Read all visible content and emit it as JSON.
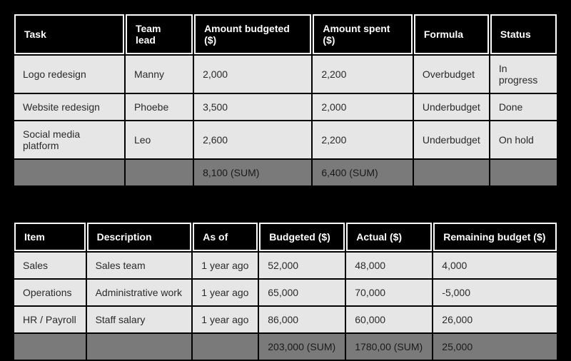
{
  "table1": {
    "type": "table",
    "header_bg": "#000000",
    "header_fg": "#ffffff",
    "header_border": "#ffffff",
    "row_bg": "#e6e6e6",
    "sum_bg": "#7a7a7a",
    "fontsize": 14,
    "columns": [
      "Task",
      "Team lead",
      "Amount budgeted ($)",
      "Amount spent ($)",
      "Formula",
      "Status"
    ],
    "rows": [
      [
        "Logo redesign",
        "Manny",
        "2,000",
        "2,200",
        "Overbudget",
        "In progress"
      ],
      [
        "Website redesign",
        "Phoebe",
        "3,500",
        "2,000",
        "Underbudget",
        "Done"
      ],
      [
        "Social media platform",
        "Leo",
        "2,600",
        "2,200",
        "Underbudget",
        "On hold"
      ]
    ],
    "sumrow": [
      "",
      "",
      "8,100 (SUM)",
      "6,400 (SUM)",
      "",
      ""
    ]
  },
  "table2": {
    "type": "table",
    "header_bg": "#000000",
    "header_fg": "#ffffff",
    "header_border": "#ffffff",
    "row_bg": "#e6e6e6",
    "sum_bg": "#7a7a7a",
    "fontsize": 14,
    "columns": [
      "Item",
      "Description",
      "As of",
      "Budgeted ($)",
      "Actual ($)",
      "Remaining budget ($)"
    ],
    "rows": [
      [
        "Sales",
        "Sales team",
        "1 year ago",
        "52,000",
        "48,000",
        "4,000"
      ],
      [
        "Operations",
        "Administrative work",
        "1 year ago",
        "65,000",
        "70,000",
        "-5,000"
      ],
      [
        "HR / Payroll",
        "Staff salary",
        "1 year ago",
        "86,000",
        "60,000",
        "26,000"
      ]
    ],
    "sumrow": [
      "",
      "",
      "",
      "203,000 (SUM)",
      "1780,00 (SUM)",
      "25,000"
    ]
  }
}
